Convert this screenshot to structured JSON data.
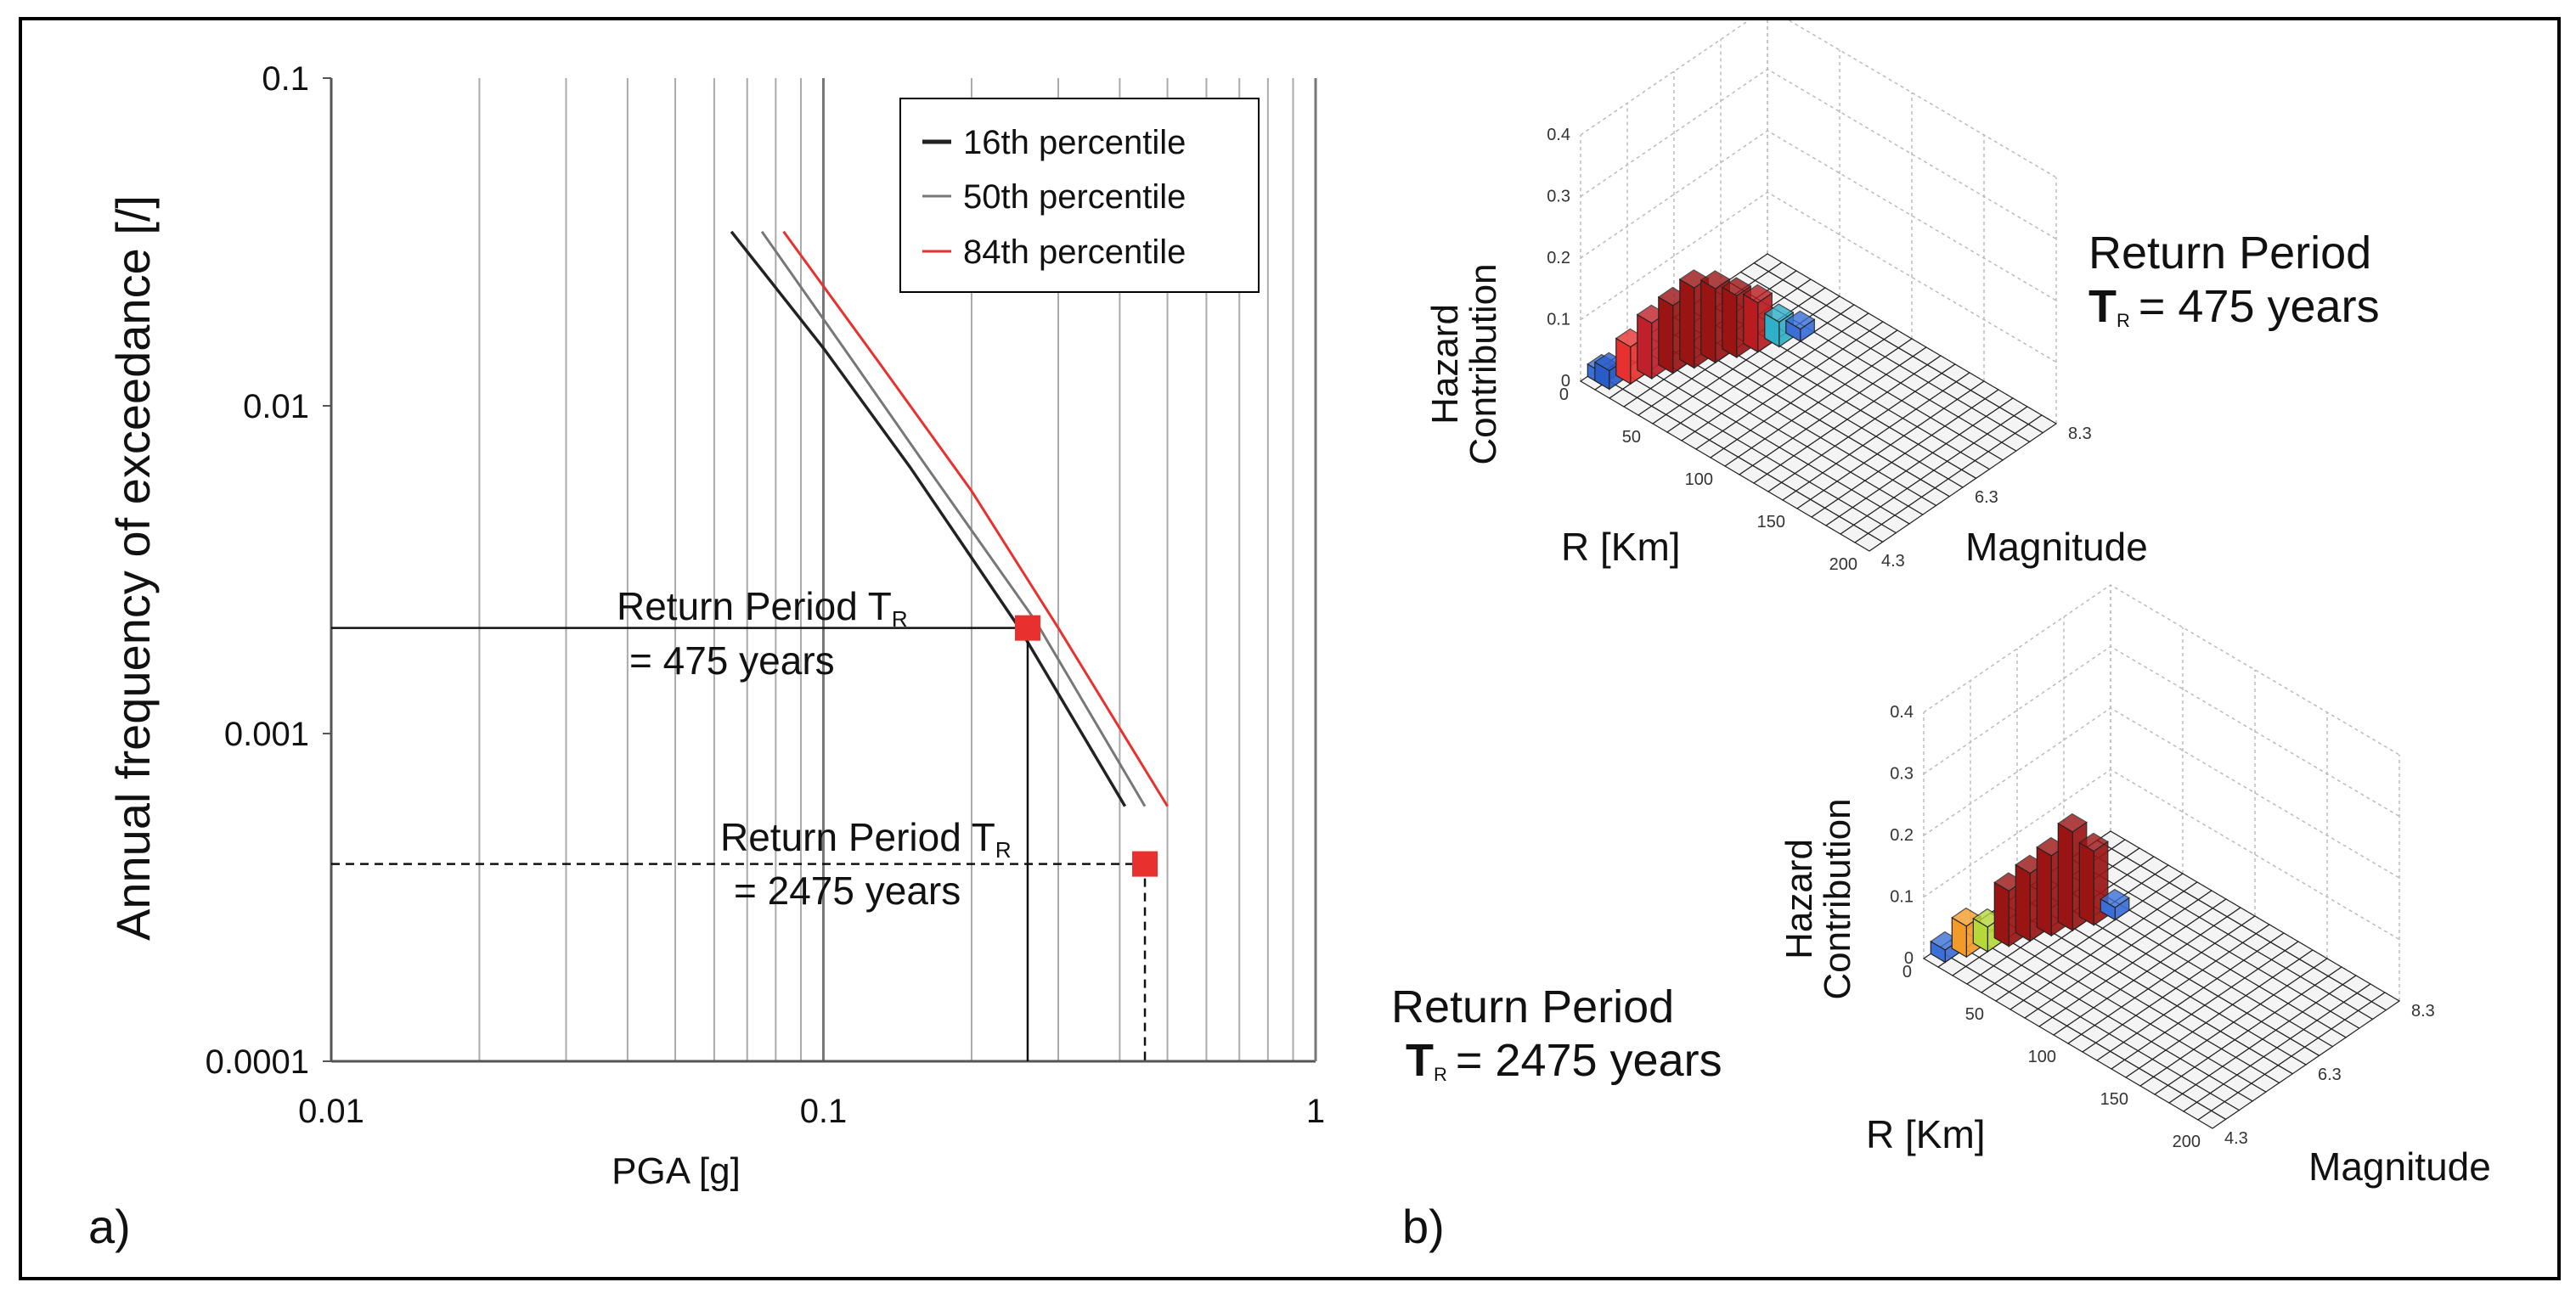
{
  "panel_a": {
    "label": "a)",
    "legend": [
      {
        "name": "16th percentile",
        "color": "#222222"
      },
      {
        "name": "50th percentile",
        "color": "#777777"
      },
      {
        "name": "84th percentile",
        "color": "#e8312e"
      }
    ],
    "annotation_475": {
      "line1": "Return Period T",
      "sub": "R",
      "line2": "= 475 years"
    },
    "annotation_2475": {
      "line1": "Return Period T",
      "sub": "R",
      "line2": "= 2475 years"
    }
  },
  "panel_b": {
    "label": "b)",
    "top": {
      "return_period_title": "Return Period",
      "tr_symbol": "T",
      "tr_sub": "R",
      "tr_value": "= 475 years",
      "z_label_1": "Hazard",
      "z_label_2": "Contribution",
      "x_label": "R [Km]",
      "y_label": "Magnitude"
    },
    "bottom": {
      "return_period_title": "Return Period",
      "tr_symbol": "T",
      "tr_sub": "R",
      "tr_value": "= 2475 years",
      "z_label_1": "Hazard",
      "z_label_2": "Contribution",
      "x_label": "R [Km]",
      "y_label": "Magnitude"
    },
    "z_ticks": [
      "0",
      "0.1",
      "0.2",
      "0.3",
      "0.4"
    ],
    "r_ticks": [
      "0",
      "50",
      "100",
      "150",
      "200"
    ],
    "m_ticks": [
      "4.3",
      "6.3",
      "8.3"
    ]
  },
  "chart_data": [
    {
      "type": "line",
      "title": "",
      "xlabel": "PGA [g]",
      "ylabel": "Annual frequency of exceedance [/]",
      "xscale": "log",
      "yscale": "log",
      "xlim": [
        0.01,
        1
      ],
      "ylim": [
        0.0001,
        0.1
      ],
      "x_tick_labels": [
        "0.01",
        "0.1",
        "1"
      ],
      "y_tick_labels": [
        "0.0001",
        "0.001",
        "0.01",
        "0.1"
      ],
      "grid": "vertical",
      "legend_position": "top-right",
      "series": [
        {
          "name": "16th percentile",
          "x": [
            0.065,
            0.1,
            0.15,
            0.25,
            0.41
          ],
          "y": [
            0.034,
            0.015,
            0.0065,
            0.0021,
            0.0006
          ]
        },
        {
          "name": "50th percentile",
          "x": [
            0.075,
            0.11,
            0.16,
            0.27,
            0.45
          ],
          "y": [
            0.034,
            0.015,
            0.0067,
            0.0022,
            0.0006
          ]
        },
        {
          "name": "84th percentile",
          "x": [
            0.083,
            0.13,
            0.2,
            0.3,
            0.5
          ],
          "y": [
            0.034,
            0.0135,
            0.0055,
            0.0021,
            0.0006
          ]
        }
      ],
      "markers": [
        {
          "label": "Return Period T_R = 475 years",
          "x": 0.26,
          "y": 0.0021
        },
        {
          "label": "Return Period T_R = 2475 years",
          "x": 0.45,
          "y": 0.0004
        }
      ],
      "reference_lines": [
        {
          "style": "solid",
          "y": 0.0021,
          "x": 0.26
        },
        {
          "style": "dashed",
          "y": 0.0004,
          "x": 0.45
        }
      ]
    },
    {
      "type": "bar3d",
      "title": "Return Period T_R = 475 years",
      "xlabel": "R [Km]",
      "ylabel": "Magnitude",
      "zlabel": "Hazard Contribution",
      "zlim": [
        0,
        0.4
      ],
      "bars": [
        {
          "r": 5,
          "m": 4.6,
          "value": 0.02,
          "color": "#3a6fd8"
        },
        {
          "r": 10,
          "m": 4.6,
          "value": 0.03,
          "color": "#2a5cc8"
        },
        {
          "r": 15,
          "m": 4.9,
          "value": 0.06,
          "color": "#e8312e"
        },
        {
          "r": 20,
          "m": 5.2,
          "value": 0.09,
          "color": "#c0202a"
        },
        {
          "r": 25,
          "m": 5.5,
          "value": 0.11,
          "color": "#9b1414"
        },
        {
          "r": 30,
          "m": 5.8,
          "value": 0.13,
          "color": "#9b1414"
        },
        {
          "r": 35,
          "m": 6.1,
          "value": 0.12,
          "color": "#9b1414"
        },
        {
          "r": 40,
          "m": 6.4,
          "value": 0.1,
          "color": "#9b1414"
        },
        {
          "r": 45,
          "m": 6.7,
          "value": 0.08,
          "color": "#b81c20"
        },
        {
          "r": 50,
          "m": 7.0,
          "value": 0.04,
          "color": "#2fb0c8"
        },
        {
          "r": 55,
          "m": 7.3,
          "value": 0.02,
          "color": "#3a6fd8"
        }
      ]
    },
    {
      "type": "bar3d",
      "title": "Return Period T_R = 2475 years",
      "xlabel": "R [Km]",
      "ylabel": "Magnitude",
      "zlabel": "Hazard Contribution",
      "zlim": [
        0,
        0.4
      ],
      "bars": [
        {
          "r": 5,
          "m": 4.6,
          "value": 0.02,
          "color": "#3a6fd8"
        },
        {
          "r": 10,
          "m": 4.9,
          "value": 0.05,
          "color": "#f39a2a"
        },
        {
          "r": 15,
          "m": 5.2,
          "value": 0.04,
          "color": "#b7d83a"
        },
        {
          "r": 20,
          "m": 5.5,
          "value": 0.09,
          "color": "#9b1414"
        },
        {
          "r": 25,
          "m": 5.8,
          "value": 0.11,
          "color": "#9b1414"
        },
        {
          "r": 30,
          "m": 6.1,
          "value": 0.13,
          "color": "#9b1414"
        },
        {
          "r": 35,
          "m": 6.4,
          "value": 0.16,
          "color": "#9b1414"
        },
        {
          "r": 40,
          "m": 6.7,
          "value": 0.12,
          "color": "#9b1414"
        },
        {
          "r": 45,
          "m": 7.0,
          "value": 0.02,
          "color": "#3a6fd8"
        }
      ]
    }
  ]
}
